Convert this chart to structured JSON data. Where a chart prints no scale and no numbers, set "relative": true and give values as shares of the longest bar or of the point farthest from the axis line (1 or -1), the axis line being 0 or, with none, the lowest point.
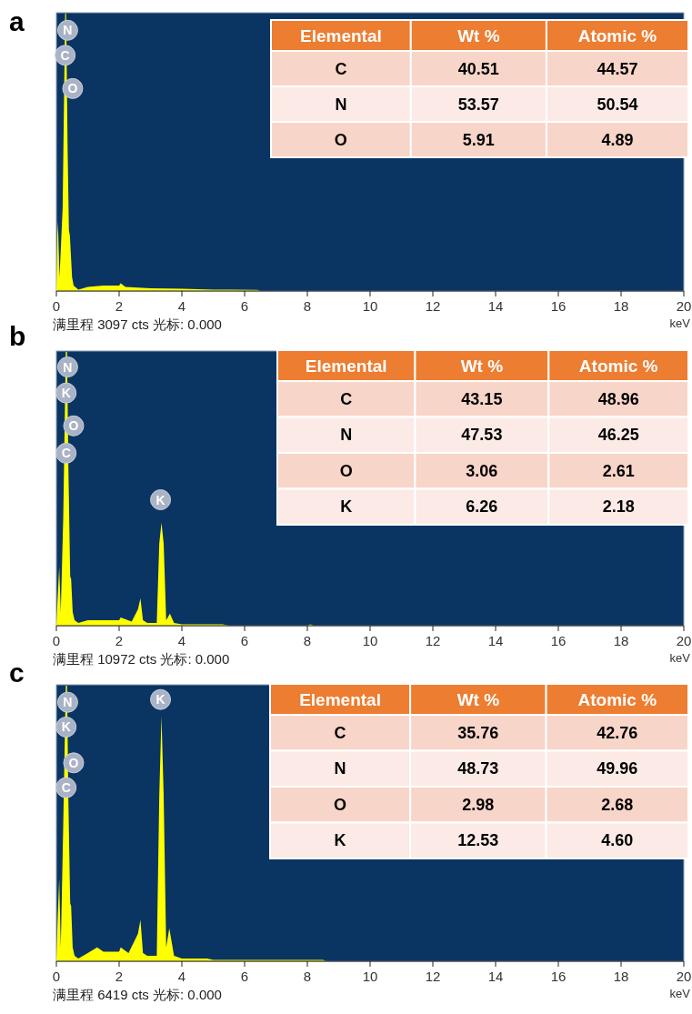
{
  "chart_data": [
    {
      "type": "area",
      "title": "a",
      "relative": true,
      "xlabel": "keV",
      "xlim": [
        0,
        20
      ],
      "xticks": [
        0,
        2,
        4,
        6,
        8,
        10,
        12,
        14,
        16,
        18,
        20
      ],
      "series": [
        {
          "color": "#ffff00",
          "x": [
            0,
            0.03,
            0.05,
            0.1,
            0.2,
            0.28,
            0.31,
            0.36,
            0.4,
            0.43,
            0.5,
            0.55,
            0.7,
            1.0,
            1.5,
            2.0,
            2.05,
            2.2,
            3,
            4,
            5,
            6.4,
            6.5,
            20
          ],
          "values": [
            0,
            0.2,
            0.25,
            0.05,
            0.3,
            1.0,
            1.0,
            0.5,
            0.22,
            0.2,
            0.05,
            0.02,
            0.005,
            0.015,
            0.02,
            0.02,
            0.028,
            0.015,
            0.01,
            0.008,
            0.005,
            0.004,
            0,
            0
          ]
        }
      ],
      "annotations": [
        {
          "text": "N",
          "x": 0.36,
          "y": 0.94
        },
        {
          "text": "C",
          "x": 0.28,
          "y": 0.85
        },
        {
          "text": "O",
          "x": 0.52,
          "y": 0.73
        },
        "满里程 3097 cts 光标: 0.000"
      ]
    },
    {
      "type": "other",
      "xlabel": "Elemental",
      "categories": [
        "C",
        "N",
        "O"
      ],
      "data_labels": true,
      "series": [
        {
          "name": "Wt %",
          "values": [
            40.51,
            53.57,
            5.91
          ],
          "colors": [
            "#f8d5c9",
            "#fbeae5",
            "#f8d5c9"
          ]
        },
        {
          "name": "Atomic %",
          "values": [
            44.57,
            50.54,
            4.89
          ],
          "colors": [
            "#f8d5c9",
            "#fbeae5",
            "#f8d5c9"
          ]
        }
      ]
    },
    {
      "type": "area",
      "title": "b",
      "relative": true,
      "xlabel": "keV",
      "xlim": [
        0,
        20
      ],
      "xticks": [
        0,
        2,
        4,
        6,
        8,
        10,
        12,
        14,
        16,
        18,
        20
      ],
      "series": [
        {
          "color": "#ffff00",
          "x": [
            0,
            0.04,
            0.09,
            0.14,
            0.22,
            0.3,
            0.34,
            0.38,
            0.44,
            0.47,
            0.52,
            0.58,
            0.7,
            1.0,
            1.5,
            2.0,
            2.05,
            2.4,
            2.6,
            2.68,
            2.76,
            2.9,
            3.2,
            3.28,
            3.35,
            3.42,
            3.5,
            3.62,
            3.75,
            4.0,
            5.3,
            5.5,
            8.0,
            8.1,
            8.2,
            20
          ],
          "values": [
            0,
            0.1,
            0.215,
            0.05,
            0.4,
            1.0,
            1.0,
            0.6,
            0.18,
            0.17,
            0.05,
            0.02,
            0.01,
            0.02,
            0.02,
            0.02,
            0.03,
            0.015,
            0.06,
            0.1,
            0.02,
            0.01,
            0.01,
            0.3,
            0.376,
            0.3,
            0.02,
            0.044,
            0.01,
            0.005,
            0.005,
            0,
            0,
            0.005,
            0,
            0
          ]
        }
      ],
      "annotations": [
        {
          "text": "N",
          "x": 0.36,
          "y": 0.945
        },
        {
          "text": "K",
          "x": 0.31,
          "y": 0.85
        },
        {
          "text": "O",
          "x": 0.55,
          "y": 0.73
        },
        {
          "text": "C",
          "x": 0.31,
          "y": 0.63
        },
        {
          "text": "K",
          "x": 3.32,
          "y": 0.46
        },
        "满里程 10972 cts 光标: 0.000"
      ]
    },
    {
      "type": "other",
      "xlabel": "Elemental",
      "categories": [
        "C",
        "N",
        "O",
        "K"
      ],
      "data_labels": true,
      "series": [
        {
          "name": "Wt %",
          "values": [
            43.15,
            47.53,
            3.06,
            6.26
          ],
          "colors": [
            "#f8d5c9",
            "#fbeae5",
            "#f8d5c9",
            "#fbeae5"
          ]
        },
        {
          "name": "Atomic %",
          "values": [
            48.96,
            46.25,
            2.61,
            2.18
          ],
          "colors": [
            "#f8d5c9",
            "#fbeae5",
            "#f8d5c9",
            "#fbeae5"
          ]
        }
      ]
    },
    {
      "type": "area",
      "title": "c",
      "relative": true,
      "xlabel": "keV",
      "xlim": [
        0,
        20
      ],
      "xticks": [
        0,
        2,
        4,
        6,
        8,
        10,
        12,
        14,
        16,
        18,
        20
      ],
      "series": [
        {
          "color": "#ffff00",
          "x": [
            0,
            0.04,
            0.09,
            0.14,
            0.22,
            0.3,
            0.34,
            0.38,
            0.44,
            0.47,
            0.52,
            0.58,
            0.7,
            1.0,
            1.3,
            1.5,
            2.0,
            2.05,
            2.3,
            2.6,
            2.68,
            2.76,
            2.9,
            3.2,
            3.28,
            3.35,
            3.42,
            3.5,
            3.6,
            3.75,
            4.0,
            4.8,
            5.0,
            8.5,
            8.6,
            20
          ],
          "values": [
            0,
            0.15,
            0.3,
            0.05,
            0.5,
            1.0,
            1.0,
            0.6,
            0.21,
            0.2,
            0.05,
            0.02,
            0.01,
            0.03,
            0.05,
            0.035,
            0.035,
            0.05,
            0.03,
            0.1,
            0.15,
            0.03,
            0.02,
            0.02,
            0.6,
            0.89,
            0.6,
            0.05,
            0.12,
            0.02,
            0.01,
            0.01,
            0.005,
            0.005,
            0,
            0
          ]
        }
      ],
      "annotations": [
        {
          "text": "N",
          "x": 0.36,
          "y": 0.94
        },
        {
          "text": "K",
          "x": 0.31,
          "y": 0.85
        },
        {
          "text": "O",
          "x": 0.55,
          "y": 0.72
        },
        {
          "text": "C",
          "x": 0.31,
          "y": 0.63
        },
        {
          "text": "K",
          "x": 3.32,
          "y": 0.95
        },
        "满里程 6419 cts 光标: 0.000"
      ]
    },
    {
      "type": "other",
      "xlabel": "Elemental",
      "categories": [
        "C",
        "N",
        "O",
        "K"
      ],
      "data_labels": true,
      "series": [
        {
          "name": "Wt %",
          "values": [
            35.76,
            48.73,
            2.98,
            12.53
          ],
          "colors": [
            "#f8d5c9",
            "#fbeae5",
            "#f8d5c9",
            "#fbeae5"
          ]
        },
        {
          "name": "Atomic %",
          "values": [
            42.76,
            49.96,
            2.68,
            4.6
          ],
          "value_labels": [
            "42.76",
            "49.96",
            "2.68",
            "4.60"
          ],
          "colors": [
            "#f8d5c9",
            "#fbeae5",
            "#f8d5c9",
            "#fbeae5"
          ]
        }
      ]
    }
  ]
}
